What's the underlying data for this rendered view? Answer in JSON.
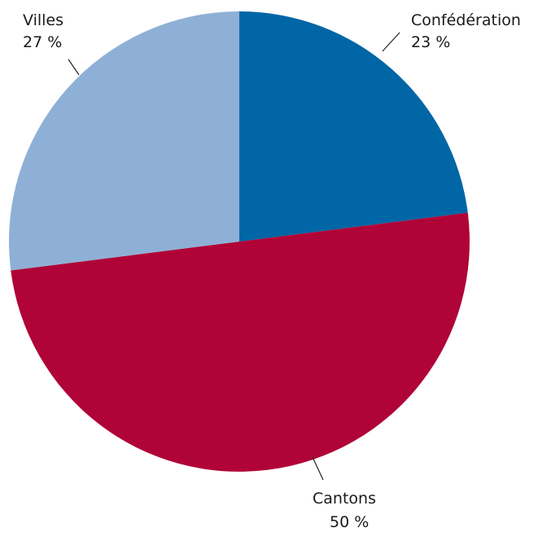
{
  "chart_data": {
    "type": "pie",
    "slices": [
      {
        "name": "Confédération",
        "label": "23 %",
        "value": 23,
        "color": "#0066a6"
      },
      {
        "name": "Cantons",
        "label": "50 %",
        "value": 50,
        "color": "#b00337"
      },
      {
        "name": "Villes",
        "label": "27 %",
        "value": 27,
        "color": "#8fb0d6"
      }
    ]
  }
}
